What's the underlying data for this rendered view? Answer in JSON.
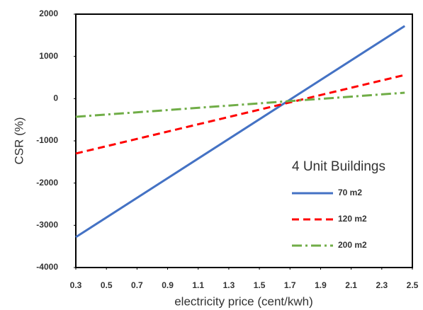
{
  "chart_data": {
    "type": "line",
    "x_label": "electricity price (cent/kwh)",
    "y_label": "CSR (%)",
    "legend_title": "4 Unit Buildings",
    "x": [
      0.3,
      2.45
    ],
    "series": [
      {
        "name": "70 m2",
        "color": "#4472c4",
        "dash": "solid",
        "values": [
          -3280,
          1720
        ]
      },
      {
        "name": "120 m2",
        "color": "#ff0000",
        "dash": "dashed",
        "values": [
          -1300,
          560
        ]
      },
      {
        "name": "200 m2",
        "color": "#70ad47",
        "dash": "dashdot",
        "values": [
          -430,
          140
        ]
      }
    ],
    "xlim": [
      0.3,
      2.5
    ],
    "xticks": [
      0.3,
      0.5,
      0.7,
      0.9,
      1.1,
      1.3,
      1.5,
      1.7,
      1.9,
      2.1,
      2.3,
      2.5
    ],
    "ylim": [
      -4000,
      2000
    ],
    "yticks": [
      -4000,
      -3000,
      -2000,
      -1000,
      0,
      1000,
      2000
    ],
    "grid": false,
    "legend": "right"
  }
}
